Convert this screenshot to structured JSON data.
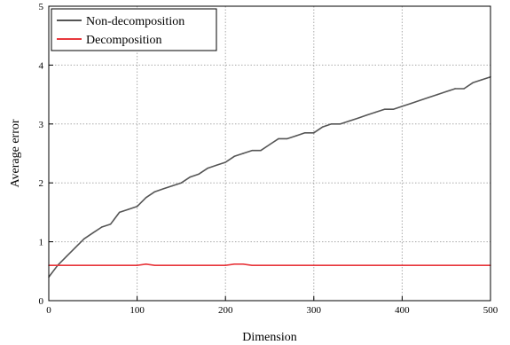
{
  "chart_data": {
    "type": "line",
    "title": "",
    "xlabel": "Dimension",
    "ylabel": "Average error",
    "xlim": [
      0,
      500
    ],
    "ylim": [
      0,
      5
    ],
    "xticks": [
      "0",
      "100",
      "200",
      "300",
      "400",
      "500"
    ],
    "yticks": [
      "0",
      "1",
      "2",
      "3",
      "4",
      "5"
    ],
    "grid": true,
    "legend_position": "top-left",
    "x": [
      0,
      10,
      20,
      30,
      40,
      50,
      60,
      70,
      80,
      90,
      100,
      110,
      120,
      130,
      140,
      150,
      160,
      170,
      180,
      190,
      200,
      210,
      220,
      230,
      240,
      250,
      260,
      270,
      280,
      290,
      300,
      310,
      320,
      330,
      340,
      350,
      360,
      370,
      380,
      390,
      400,
      410,
      420,
      430,
      440,
      450,
      460,
      470,
      480,
      490,
      500
    ],
    "series": [
      {
        "name": "Non-decomposition",
        "color": "#555555",
        "values": [
          0.4,
          0.6,
          0.75,
          0.9,
          1.05,
          1.15,
          1.25,
          1.3,
          1.5,
          1.55,
          1.6,
          1.75,
          1.85,
          1.9,
          1.95,
          2.0,
          2.1,
          2.15,
          2.25,
          2.3,
          2.35,
          2.45,
          2.5,
          2.55,
          2.55,
          2.65,
          2.75,
          2.75,
          2.8,
          2.85,
          2.85,
          2.95,
          3.0,
          3.0,
          3.05,
          3.1,
          3.15,
          3.2,
          3.25,
          3.25,
          3.3,
          3.35,
          3.4,
          3.45,
          3.5,
          3.55,
          3.6,
          3.6,
          3.7,
          3.75,
          3.8
        ]
      },
      {
        "name": "Decomposition",
        "color": "#e8383d",
        "values": [
          0.6,
          0.6,
          0.6,
          0.6,
          0.6,
          0.6,
          0.6,
          0.6,
          0.6,
          0.6,
          0.6,
          0.62,
          0.6,
          0.6,
          0.6,
          0.6,
          0.6,
          0.6,
          0.6,
          0.6,
          0.6,
          0.62,
          0.62,
          0.6,
          0.6,
          0.6,
          0.6,
          0.6,
          0.6,
          0.6,
          0.6,
          0.6,
          0.6,
          0.6,
          0.6,
          0.6,
          0.6,
          0.6,
          0.6,
          0.6,
          0.6,
          0.6,
          0.6,
          0.6,
          0.6,
          0.6,
          0.6,
          0.6,
          0.6,
          0.6,
          0.6
        ]
      }
    ]
  }
}
